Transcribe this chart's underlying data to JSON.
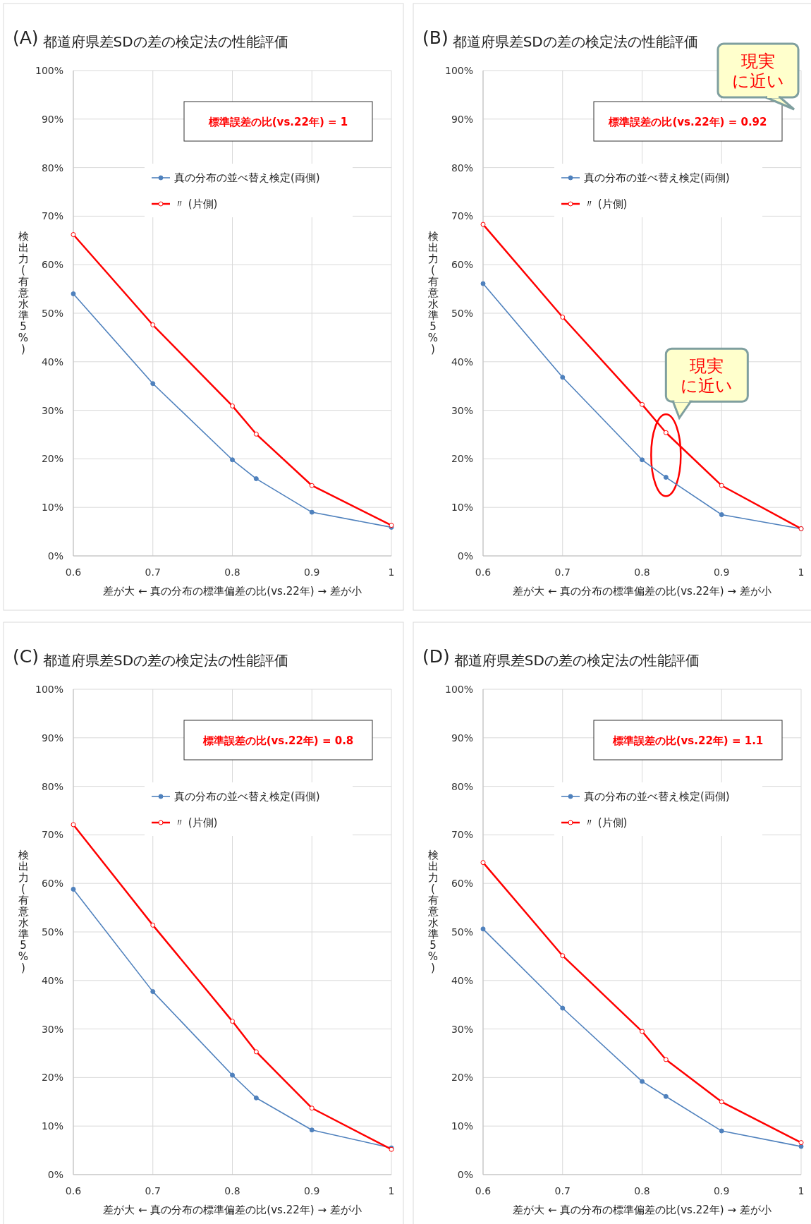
{
  "chart_data": [
    {
      "type": "line",
      "title": "(A) 都道府県差SDの差の検定法の性能評価",
      "xlabel": "差が大 ← 真の分布の標準偏差の比(vs.22年) → 差が小",
      "ylabel": "検出力(有意水準5%)",
      "x": [
        0.6,
        0.7,
        0.8,
        0.83,
        0.9,
        1
      ],
      "xlim": [
        0.6,
        1
      ],
      "xticks": [
        0.6,
        0.7,
        0.8,
        0.9,
        1
      ],
      "ylim": [
        0,
        100
      ],
      "yticks": [
        {
          "value": 0,
          "label": "0%"
        },
        {
          "value": 10,
          "label": "10%"
        },
        {
          "value": 20,
          "label": "20%"
        },
        {
          "value": 30,
          "label": "30%"
        },
        {
          "value": 40,
          "label": "40%"
        },
        {
          "value": 50,
          "label": "50%"
        },
        {
          "value": 60,
          "label": "60%"
        },
        {
          "value": 70,
          "label": "70%"
        },
        {
          "value": 80,
          "label": "80%"
        },
        {
          "value": 90,
          "label": "90%"
        },
        {
          "value": 100,
          "label": "100%"
        }
      ],
      "grid": true,
      "legend": "top",
      "marker": "circle",
      "line_style": "solid",
      "series": [
        {
          "name": "真の分布の並べ替え検定(両側)",
          "color": "#4f81bd",
          "values": [
            54,
            35.5,
            19.8,
            15.9,
            9,
            5.9
          ]
        },
        {
          "name": "〃 (片側)",
          "color": "#ff0000",
          "values": [
            66.2,
            47.6,
            30.9,
            25.1,
            14.5,
            6.3
          ]
        }
      ],
      "annotations": [
        "標準誤差の比(vs.22年) = 1"
      ]
    },
    {
      "type": "line",
      "title": "(B) 都道府県差SDの差の検定法の性能評価",
      "xlabel": "差が大 ← 真の分布の標準偏差の比(vs.22年) → 差が小",
      "ylabel": "検出力(有意水準5%)",
      "x": [
        0.6,
        0.7,
        0.8,
        0.83,
        0.9,
        1
      ],
      "xlim": [
        0.6,
        1
      ],
      "xticks": [
        0.6,
        0.7,
        0.8,
        0.9,
        1
      ],
      "ylim": [
        0,
        100
      ],
      "yticks": [
        {
          "value": 0,
          "label": "0%"
        },
        {
          "value": 10,
          "label": "10%"
        },
        {
          "value": 20,
          "label": "20%"
        },
        {
          "value": 30,
          "label": "30%"
        },
        {
          "value": 40,
          "label": "40%"
        },
        {
          "value": 50,
          "label": "50%"
        },
        {
          "value": 60,
          "label": "60%"
        },
        {
          "value": 70,
          "label": "70%"
        },
        {
          "value": 80,
          "label": "80%"
        },
        {
          "value": 90,
          "label": "90%"
        },
        {
          "value": 100,
          "label": "100%"
        }
      ],
      "grid": true,
      "legend": "top",
      "marker": "circle",
      "line_style": "solid",
      "series": [
        {
          "name": "真の分布の並べ替え検定(両側)",
          "color": "#4f81bd",
          "values": [
            56.1,
            36.8,
            19.8,
            16.2,
            8.5,
            5.6
          ]
        },
        {
          "name": "〃 (片側)",
          "color": "#ff0000",
          "values": [
            68.3,
            49.2,
            31.2,
            25.4,
            14.5,
            5.6
          ]
        }
      ],
      "annotations": [
        "標準誤差の比(vs.22年) = 0.92",
        "現実に近い",
        {
          "text": "現実に近い",
          "x": 0.83,
          "y": 25.4
        }
      ]
    },
    {
      "type": "line",
      "title": "(C) 都道府県差SDの差の検定法の性能評価",
      "xlabel": "差が大 ← 真の分布の標準偏差の比(vs.22年) → 差が小",
      "ylabel": "検出力(有意水準5%)",
      "x": [
        0.6,
        0.7,
        0.8,
        0.83,
        0.9,
        1
      ],
      "xlim": [
        0.6,
        1
      ],
      "xticks": [
        0.6,
        0.7,
        0.8,
        0.9,
        1
      ],
      "ylim": [
        0,
        100
      ],
      "yticks": [
        {
          "value": 0,
          "label": "0%"
        },
        {
          "value": 10,
          "label": "10%"
        },
        {
          "value": 20,
          "label": "20%"
        },
        {
          "value": 30,
          "label": "30%"
        },
        {
          "value": 40,
          "label": "40%"
        },
        {
          "value": 50,
          "label": "50%"
        },
        {
          "value": 60,
          "label": "60%"
        },
        {
          "value": 70,
          "label": "70%"
        },
        {
          "value": 80,
          "label": "80%"
        },
        {
          "value": 90,
          "label": "90%"
        },
        {
          "value": 100,
          "label": "100%"
        }
      ],
      "grid": true,
      "legend": "top",
      "marker": "circle",
      "line_style": "solid",
      "series": [
        {
          "name": "真の分布の並べ替え検定(両側)",
          "color": "#4f81bd",
          "values": [
            58.8,
            37.7,
            20.5,
            15.8,
            9.2,
            5.5
          ]
        },
        {
          "name": "〃 (片側)",
          "color": "#ff0000",
          "values": [
            72.1,
            51.4,
            31.6,
            25.3,
            13.7,
            5.2
          ]
        }
      ],
      "annotations": [
        "標準誤差の比(vs.22年) = 0.8"
      ]
    },
    {
      "type": "line",
      "title": "(D) 都道府県差SDの差の検定法の性能評価",
      "xlabel": "差が大 ← 真の分布の標準偏差の比(vs.22年) → 差が小",
      "ylabel": "検出力(有意水準5%)",
      "x": [
        0.6,
        0.7,
        0.8,
        0.83,
        0.9,
        1
      ],
      "xlim": [
        0.6,
        1
      ],
      "xticks": [
        0.6,
        0.7,
        0.8,
        0.9,
        1
      ],
      "ylim": [
        0,
        100
      ],
      "yticks": [
        {
          "value": 0,
          "label": "0%"
        },
        {
          "value": 10,
          "label": "10%"
        },
        {
          "value": 20,
          "label": "20%"
        },
        {
          "value": 30,
          "label": "30%"
        },
        {
          "value": 40,
          "label": "40%"
        },
        {
          "value": 50,
          "label": "50%"
        },
        {
          "value": 60,
          "label": "60%"
        },
        {
          "value": 70,
          "label": "70%"
        },
        {
          "value": 80,
          "label": "80%"
        },
        {
          "value": 90,
          "label": "90%"
        },
        {
          "value": 100,
          "label": "100%"
        }
      ],
      "grid": true,
      "legend": "top",
      "marker": "circle",
      "line_style": "solid",
      "series": [
        {
          "name": "真の分布の並べ替え検定(両側)",
          "color": "#4f81bd",
          "values": [
            50.6,
            34.3,
            19.2,
            16.1,
            9,
            5.8
          ]
        },
        {
          "name": "〃 (片側)",
          "color": "#ff0000",
          "values": [
            64.3,
            45.1,
            29.5,
            23.7,
            15,
            6.6
          ]
        }
      ],
      "annotations": [
        "標準誤差の比(vs.22年) = 1.1"
      ]
    }
  ]
}
